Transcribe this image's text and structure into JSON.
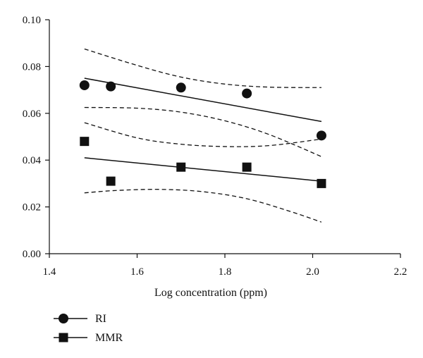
{
  "chart_data": {
    "type": "scatter",
    "title": "",
    "xlabel": "Log concentration (ppm)",
    "ylabel": "",
    "xlim": [
      1.4,
      2.2
    ],
    "ylim": [
      0.0,
      0.1
    ],
    "xticks": [
      "1.4",
      "1.6",
      "1.8",
      "2.0",
      "2.2"
    ],
    "yticks": [
      "0.00",
      "0.02",
      "0.04",
      "0.06",
      "0.08",
      "0.10"
    ],
    "grid": false,
    "legend_position": "bottom-left",
    "series": [
      {
        "name": "RI",
        "marker": "circle",
        "points": [
          [
            1.48,
            0.072
          ],
          [
            1.54,
            0.0715
          ],
          [
            1.7,
            0.071
          ],
          [
            1.85,
            0.0685
          ],
          [
            2.02,
            0.0505
          ]
        ],
        "fit": [
          [
            1.48,
            0.075
          ],
          [
            2.02,
            0.0565
          ]
        ],
        "ci_upper": [
          [
            1.48,
            0.0875
          ],
          [
            1.6,
            0.0805
          ],
          [
            1.7,
            0.0755
          ],
          [
            1.8,
            0.0725
          ],
          [
            1.9,
            0.0712
          ],
          [
            2.02,
            0.071
          ]
        ],
        "ci_lower": [
          [
            1.48,
            0.0625
          ],
          [
            1.6,
            0.0622
          ],
          [
            1.7,
            0.0605
          ],
          [
            1.8,
            0.0568
          ],
          [
            1.9,
            0.051
          ],
          [
            2.02,
            0.0415
          ]
        ]
      },
      {
        "name": "MMR",
        "marker": "square",
        "points": [
          [
            1.48,
            0.048
          ],
          [
            1.54,
            0.031
          ],
          [
            1.7,
            0.037
          ],
          [
            1.85,
            0.037
          ],
          [
            2.02,
            0.03
          ]
        ],
        "fit": [
          [
            1.48,
            0.041
          ],
          [
            2.02,
            0.031
          ]
        ],
        "ci_upper": [
          [
            1.48,
            0.056
          ],
          [
            1.6,
            0.0495
          ],
          [
            1.7,
            0.0468
          ],
          [
            1.8,
            0.0458
          ],
          [
            1.9,
            0.0462
          ],
          [
            2.02,
            0.049
          ]
        ],
        "ci_lower": [
          [
            1.48,
            0.026
          ],
          [
            1.55,
            0.027
          ],
          [
            1.65,
            0.0275
          ],
          [
            1.75,
            0.0265
          ],
          [
            1.85,
            0.0235
          ],
          [
            1.95,
            0.018
          ],
          [
            2.02,
            0.0135
          ]
        ]
      }
    ]
  },
  "legend": {
    "items": [
      {
        "label": "RI",
        "marker": "circle"
      },
      {
        "label": "MMR",
        "marker": "square"
      }
    ]
  },
  "colors": {
    "ink": "#111111",
    "background": "#ffffff"
  }
}
